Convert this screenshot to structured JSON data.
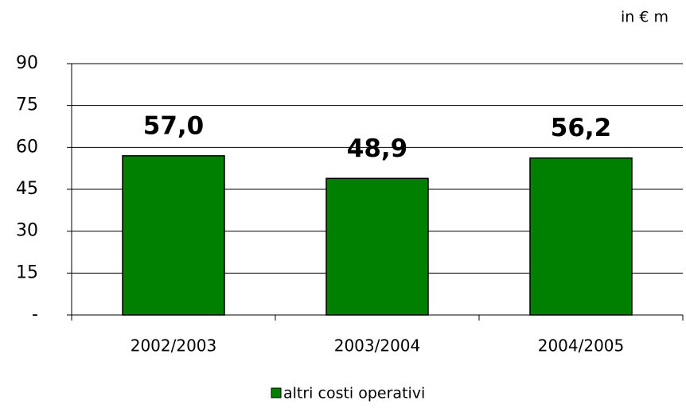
{
  "chart_data": {
    "type": "bar",
    "annotation": "in € m",
    "categories": [
      "2002/2003",
      "2003/2004",
      "2004/2005"
    ],
    "series": [
      {
        "name": "altri costi operativi",
        "color": "#008000",
        "values": [
          57.0,
          48.9,
          56.2
        ],
        "value_labels": [
          "57,0",
          "48,9",
          "56,2"
        ]
      }
    ],
    "ylim": [
      0,
      90
    ],
    "yticks": [
      {
        "value": 0,
        "label": "-"
      },
      15,
      30,
      45,
      60,
      75,
      90
    ],
    "grid": true,
    "legend": "bottom"
  }
}
